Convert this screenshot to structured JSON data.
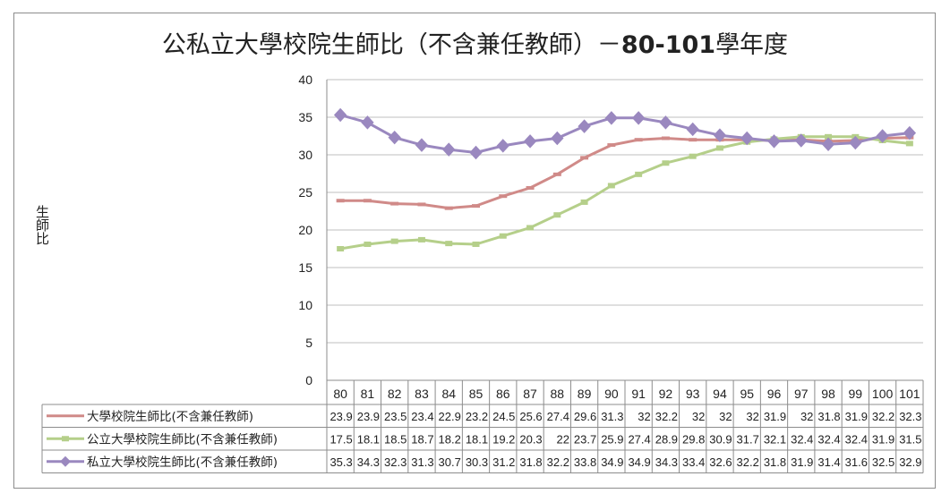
{
  "chart_data": {
    "type": "line",
    "title_prefix": "公私立大學校院生師比（不含兼任教師）－",
    "title_bold": "80-101",
    "title_suffix": "學年度",
    "ylabel": "生師比",
    "ylim": [
      0,
      40
    ],
    "yticks": [
      0,
      5,
      10,
      15,
      20,
      25,
      30,
      35,
      40
    ],
    "grid": true,
    "legend": "data-table",
    "categories": [
      "80",
      "81",
      "82",
      "83",
      "84",
      "85",
      "86",
      "87",
      "88",
      "89",
      "90",
      "91",
      "92",
      "93",
      "94",
      "95",
      "96",
      "97",
      "98",
      "99",
      "100",
      "101"
    ],
    "series": [
      {
        "name": "大學校院生師比(不含兼任教師)",
        "color": "#d08a88",
        "marker": "dash",
        "values": [
          23.9,
          23.9,
          23.5,
          23.4,
          22.9,
          23.2,
          24.5,
          25.6,
          27.4,
          29.6,
          31.3,
          32,
          32.2,
          32,
          32,
          32,
          31.9,
          32,
          31.8,
          31.9,
          32.2,
          32.3
        ],
        "labels": [
          "23.9",
          "23.9",
          "23.5",
          "23.4",
          "22.9",
          "23.2",
          "24.5",
          "25.6",
          "27.4",
          "29.6",
          "31.3",
          "32",
          "32.2",
          "32",
          "32",
          "32",
          "31.9",
          "32",
          "31.8",
          "31.9",
          "32.2",
          "32.3"
        ]
      },
      {
        "name": "公立大學校院生師比(不含兼任教師)",
        "color": "#b5cf8a",
        "marker": "square",
        "values": [
          17.5,
          18.1,
          18.5,
          18.7,
          18.2,
          18.1,
          19.2,
          20.3,
          22,
          23.7,
          25.9,
          27.4,
          28.9,
          29.8,
          30.9,
          31.7,
          32.1,
          32.4,
          32.4,
          32.4,
          31.9,
          31.5
        ],
        "labels": [
          "17.5",
          "18.1",
          "18.5",
          "18.7",
          "18.2",
          "18.1",
          "19.2",
          "20.3",
          "22",
          "23.7",
          "25.9",
          "27.4",
          "28.9",
          "29.8",
          "30.9",
          "31.7",
          "32.1",
          "32.4",
          "32.4",
          "32.4",
          "31.9",
          "31.5"
        ]
      },
      {
        "name": "私立大學校院生師比(不含兼任教師)",
        "color": "#9a88bf",
        "marker": "diamond",
        "values": [
          35.3,
          34.3,
          32.3,
          31.3,
          30.7,
          30.3,
          31.2,
          31.8,
          32.2,
          33.8,
          34.9,
          34.9,
          34.3,
          33.4,
          32.6,
          32.2,
          31.8,
          31.9,
          31.4,
          31.6,
          32.5,
          32.9
        ],
        "labels": [
          "35.3",
          "34.3",
          "32.3",
          "31.3",
          "30.7",
          "30.3",
          "31.2",
          "31.8",
          "32.2",
          "33.8",
          "34.9",
          "34.9",
          "34.3",
          "33.4",
          "32.6",
          "32.2",
          "31.8",
          "31.9",
          "31.4",
          "31.6",
          "32.5",
          "32.9"
        ]
      }
    ]
  }
}
